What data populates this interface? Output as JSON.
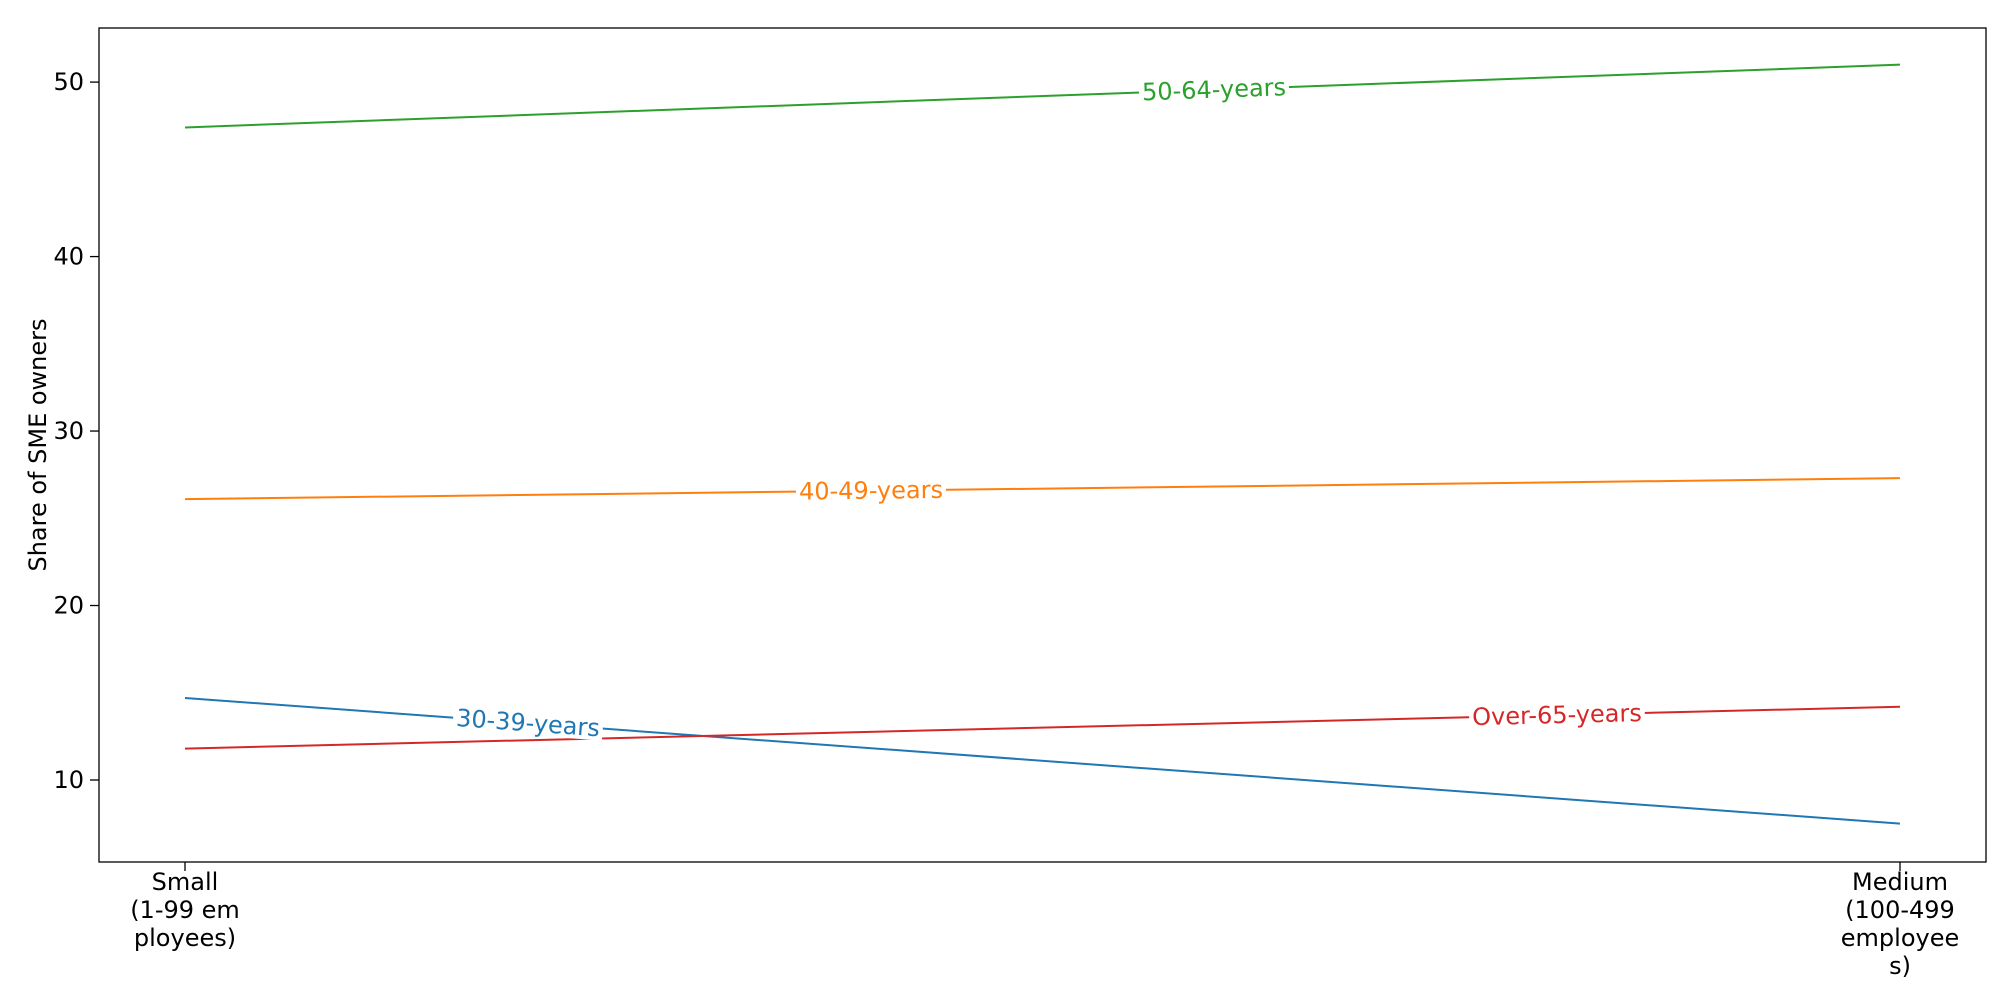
{
  "chart_data": {
    "type": "line",
    "title": "",
    "xlabel": "",
    "ylabel": "Share of SME owners",
    "categories": [
      [
        "Small",
        "(1-99 em",
        "ployees)"
      ],
      [
        "Medium",
        "(100-499",
        "employee",
        "s)"
      ]
    ],
    "yticks": [
      10,
      20,
      30,
      40,
      50
    ],
    "ylim": [
      5.3,
      53.1
    ],
    "grid": false,
    "legend": "none (inline labels)",
    "series": [
      {
        "name": "30-39-years",
        "color": "#1f77b4",
        "values": [
          14.7,
          7.5
        ],
        "label_pos": 0.2
      },
      {
        "name": "40-49-years",
        "color": "#ff7f0e",
        "values": [
          26.1,
          27.3
        ],
        "label_pos": 0.4
      },
      {
        "name": "50-64-years",
        "color": "#2ca02c",
        "values": [
          47.4,
          51.0
        ],
        "label_pos": 0.6
      },
      {
        "name": "Over-65-years",
        "color": "#d62728",
        "values": [
          11.8,
          14.2
        ],
        "label_pos": 0.8
      }
    ]
  }
}
